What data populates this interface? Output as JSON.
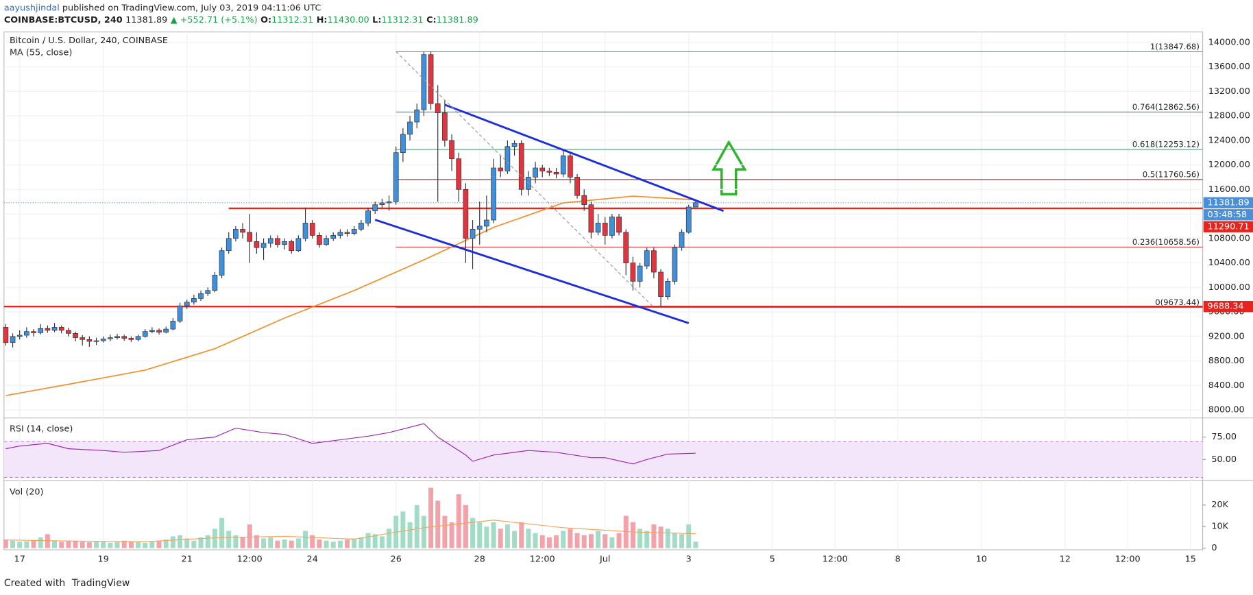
{
  "header": {
    "author": "aayushjindal",
    "published": "published on TradingView.com, July 03, 2019 04:11:06 UTC",
    "symbol": "COINBASE:BTCUSD, 240",
    "last": "11381.89",
    "change": "▲ +552.71 (+5.1%)",
    "ohlc": [
      {
        "label": "O:",
        "value": "11312.31"
      },
      {
        "label": "H:",
        "value": "11430.00"
      },
      {
        "label": "L:",
        "value": "11312.31"
      },
      {
        "label": "C:",
        "value": "11381.89"
      }
    ]
  },
  "chart_data": {
    "type": "candlestick",
    "title": "Bitcoin / U.S. Dollar, 240, COINBASE",
    "up_color": "#3f8fdc",
    "down_color": "#e0343f",
    "xlim": [
      "Jun 16 15:00",
      "Jul 15 07:00"
    ],
    "xticks": [
      {
        "value": "Jun 17 00:00",
        "label": "17"
      },
      {
        "value": "Jun 19 00:00",
        "label": "19"
      },
      {
        "value": "Jun 21 00:00",
        "label": "21"
      },
      {
        "value": "Jun 22 12:00",
        "label": "12:00"
      },
      {
        "value": "Jun 24 00:00",
        "label": "24"
      },
      {
        "value": "Jun 26 00:00",
        "label": "26"
      },
      {
        "value": "Jun 28 00:00",
        "label": "28"
      },
      {
        "value": "Jun 29 12:00",
        "label": "12:00"
      },
      {
        "value": "Jul 1 00:00",
        "label": "Jul"
      },
      {
        "value": "Jul 3 00:00",
        "label": "3"
      },
      {
        "value": "Jul 5 00:00",
        "label": "5"
      },
      {
        "value": "Jul 6 12:00",
        "label": "12:00"
      },
      {
        "value": "Jul 8 00:00",
        "label": "8"
      },
      {
        "value": "Jul 10 00:00",
        "label": "10"
      },
      {
        "value": "Jul 12 00:00",
        "label": "12"
      },
      {
        "value": "Jul 13 12:00",
        "label": "12:00"
      },
      {
        "value": "Jul 15 00:00",
        "label": "15"
      }
    ],
    "ylim": [
      7883,
      14170
    ],
    "yticks": [
      {
        "value": 8000,
        "label": "8000.00"
      },
      {
        "value": 8400,
        "label": "8400.00"
      },
      {
        "value": 8800,
        "label": "8800.00"
      },
      {
        "value": 9200,
        "label": "9200.00"
      },
      {
        "value": 9600,
        "label": "9600.00"
      },
      {
        "value": 10000,
        "label": "10000.00"
      },
      {
        "value": 10400,
        "label": "10400.00"
      },
      {
        "value": 10800,
        "label": "10800.00"
      },
      {
        "value": 11200,
        "label": "11200.00"
      },
      {
        "value": 11600,
        "label": "11600.00"
      },
      {
        "value": 12000,
        "label": "12000.00"
      },
      {
        "value": 12400,
        "label": "12400.00"
      },
      {
        "value": 12800,
        "label": "12800.00"
      },
      {
        "value": 13200,
        "label": "13200.00"
      },
      {
        "value": 13600,
        "label": "13600.00"
      },
      {
        "value": 14000,
        "label": "14000.00"
      }
    ],
    "grid": true,
    "x": [
      "Jun 16 16:00",
      "Jun 16 20:00",
      "Jun 17 00:00",
      "Jun 17 04:00",
      "Jun 17 08:00",
      "Jun 17 12:00",
      "Jun 17 16:00",
      "Jun 17 20:00",
      "Jun 18 00:00",
      "Jun 18 04:00",
      "Jun 18 08:00",
      "Jun 18 12:00",
      "Jun 18 16:00",
      "Jun 18 20:00",
      "Jun 19 00:00",
      "Jun 19 04:00",
      "Jun 19 08:00",
      "Jun 19 12:00",
      "Jun 19 16:00",
      "Jun 19 20:00",
      "Jun 20 00:00",
      "Jun 20 04:00",
      "Jun 20 08:00",
      "Jun 20 12:00",
      "Jun 20 16:00",
      "Jun 20 20:00",
      "Jun 21 00:00",
      "Jun 21 04:00",
      "Jun 21 08:00",
      "Jun 21 12:00",
      "Jun 21 16:00",
      "Jun 21 20:00",
      "Jun 22 00:00",
      "Jun 22 04:00",
      "Jun 22 08:00",
      "Jun 22 12:00",
      "Jun 22 16:00",
      "Jun 22 20:00",
      "Jun 23 00:00",
      "Jun 23 04:00",
      "Jun 23 08:00",
      "Jun 23 12:00",
      "Jun 23 16:00",
      "Jun 23 20:00",
      "Jun 24 00:00",
      "Jun 24 04:00",
      "Jun 24 08:00",
      "Jun 24 12:00",
      "Jun 24 16:00",
      "Jun 24 20:00",
      "Jun 25 00:00",
      "Jun 25 04:00",
      "Jun 25 08:00",
      "Jun 25 12:00",
      "Jun 25 16:00",
      "Jun 25 20:00",
      "Jun 26 00:00",
      "Jun 26 04:00",
      "Jun 26 08:00",
      "Jun 26 12:00",
      "Jun 26 16:00",
      "Jun 26 20:00",
      "Jun 27 00:00",
      "Jun 27 04:00",
      "Jun 27 08:00",
      "Jun 27 12:00",
      "Jun 27 16:00",
      "Jun 27 20:00",
      "Jun 28 00:00",
      "Jun 28 04:00",
      "Jun 28 08:00",
      "Jun 28 12:00",
      "Jun 28 16:00",
      "Jun 28 20:00",
      "Jun 29 00:00",
      "Jun 29 04:00",
      "Jun 29 08:00",
      "Jun 29 12:00",
      "Jun 29 16:00",
      "Jun 29 20:00",
      "Jun 30 00:00",
      "Jun 30 04:00",
      "Jun 30 08:00",
      "Jun 30 12:00",
      "Jun 30 16:00",
      "Jun 30 20:00",
      "Jul 1 00:00",
      "Jul 1 04:00",
      "Jul 1 08:00",
      "Jul 1 12:00",
      "Jul 1 16:00",
      "Jul 1 20:00",
      "Jul 2 00:00",
      "Jul 2 04:00",
      "Jul 2 08:00",
      "Jul 2 12:00",
      "Jul 2 16:00",
      "Jul 2 20:00",
      "Jul 3 00:00",
      "Jul 3 04:00"
    ],
    "ohlc": [
      [
        9350,
        9400,
        9050,
        9100
      ],
      [
        9100,
        9250,
        9020,
        9200
      ],
      [
        9200,
        9300,
        9150,
        9220
      ],
      [
        9220,
        9350,
        9180,
        9280
      ],
      [
        9280,
        9320,
        9200,
        9260
      ],
      [
        9260,
        9400,
        9230,
        9330
      ],
      [
        9330,
        9380,
        9260,
        9300
      ],
      [
        9300,
        9420,
        9270,
        9350
      ],
      [
        9350,
        9380,
        9250,
        9300
      ],
      [
        9300,
        9340,
        9200,
        9250
      ],
      [
        9250,
        9280,
        9120,
        9180
      ],
      [
        9180,
        9220,
        9050,
        9150
      ],
      [
        9150,
        9200,
        9030,
        9120
      ],
      [
        9120,
        9180,
        9060,
        9130
      ],
      [
        9130,
        9200,
        9100,
        9160
      ],
      [
        9160,
        9230,
        9120,
        9180
      ],
      [
        9180,
        9240,
        9150,
        9200
      ],
      [
        9200,
        9230,
        9130,
        9170
      ],
      [
        9170,
        9200,
        9110,
        9150
      ],
      [
        9150,
        9230,
        9120,
        9200
      ],
      [
        9200,
        9320,
        9180,
        9280
      ],
      [
        9280,
        9350,
        9250,
        9300
      ],
      [
        9300,
        9330,
        9230,
        9270
      ],
      [
        9270,
        9360,
        9250,
        9320
      ],
      [
        9320,
        9500,
        9300,
        9450
      ],
      [
        9450,
        9750,
        9420,
        9700
      ],
      [
        9700,
        9800,
        9650,
        9760
      ],
      [
        9760,
        9880,
        9720,
        9820
      ],
      [
        9820,
        9950,
        9780,
        9900
      ],
      [
        9900,
        10000,
        9860,
        9950
      ],
      [
        9950,
        10250,
        9920,
        10200
      ],
      [
        10200,
        10650,
        10150,
        10600
      ],
      [
        10600,
        10900,
        10550,
        10800
      ],
      [
        10800,
        11000,
        10750,
        10950
      ],
      [
        10950,
        11050,
        10800,
        10900
      ],
      [
        10900,
        11200,
        10400,
        10750
      ],
      [
        10750,
        10900,
        10550,
        10650
      ],
      [
        10650,
        10800,
        10450,
        10720
      ],
      [
        10720,
        10850,
        10650,
        10800
      ],
      [
        10800,
        10850,
        10650,
        10700
      ],
      [
        10700,
        10800,
        10620,
        10750
      ],
      [
        10750,
        10780,
        10550,
        10600
      ],
      [
        10600,
        10850,
        10580,
        10800
      ],
      [
        10800,
        11300,
        10750,
        11050
      ],
      [
        11050,
        11100,
        10800,
        10850
      ],
      [
        10850,
        10900,
        10650,
        10700
      ],
      [
        10700,
        10850,
        10680,
        10800
      ],
      [
        10800,
        10900,
        10760,
        10850
      ],
      [
        10850,
        10950,
        10800,
        10900
      ],
      [
        10900,
        10950,
        10830,
        10880
      ],
      [
        10880,
        11000,
        10850,
        10950
      ],
      [
        10950,
        11100,
        10920,
        11050
      ],
      [
        11050,
        11300,
        11000,
        11250
      ],
      [
        11250,
        11400,
        11200,
        11350
      ],
      [
        11350,
        11450,
        11300,
        11380
      ],
      [
        11380,
        11500,
        11250,
        11400
      ],
      [
        11400,
        12300,
        11350,
        12200
      ],
      [
        12200,
        12600,
        12050,
        12500
      ],
      [
        12500,
        12800,
        12400,
        12700
      ],
      [
        12700,
        13000,
        12600,
        12900
      ],
      [
        12900,
        13848,
        12800,
        13800
      ],
      [
        13800,
        13850,
        12900,
        13000
      ],
      [
        13000,
        13300,
        11400,
        12850
      ],
      [
        12850,
        13050,
        12300,
        12400
      ],
      [
        12400,
        12500,
        11900,
        12100
      ],
      [
        12100,
        12200,
        11400,
        11600
      ],
      [
        11600,
        11700,
        10400,
        10800
      ],
      [
        10800,
        11100,
        10300,
        10950
      ],
      [
        10950,
        11400,
        10700,
        11000
      ],
      [
        11000,
        11500,
        10900,
        11100
      ],
      [
        11100,
        12100,
        11050,
        11950
      ],
      [
        11950,
        12150,
        11800,
        11900
      ],
      [
        11900,
        12400,
        11850,
        12300
      ],
      [
        12300,
        12400,
        12150,
        12350
      ],
      [
        12350,
        12400,
        11500,
        11600
      ],
      [
        11600,
        11900,
        11500,
        11800
      ],
      [
        11800,
        12050,
        11700,
        11950
      ],
      [
        11950,
        12000,
        11800,
        11900
      ],
      [
        11900,
        11950,
        11820,
        11880
      ],
      [
        11880,
        11950,
        11780,
        11850
      ],
      [
        11850,
        12250,
        11800,
        12150
      ],
      [
        12150,
        12200,
        11700,
        11800
      ],
      [
        11800,
        11850,
        11450,
        11500
      ],
      [
        11500,
        11600,
        11250,
        11350
      ],
      [
        11350,
        11400,
        10800,
        10900
      ],
      [
        10900,
        11200,
        10850,
        11050
      ],
      [
        11050,
        11150,
        10700,
        10850
      ],
      [
        10850,
        11200,
        10800,
        11150
      ],
      [
        11150,
        11200,
        10850,
        10900
      ],
      [
        10900,
        10950,
        10200,
        10400
      ],
      [
        10400,
        10500,
        9950,
        10100
      ],
      [
        10100,
        10400,
        10000,
        10350
      ],
      [
        10350,
        10650,
        10300,
        10600
      ],
      [
        10600,
        10650,
        10150,
        10250
      ],
      [
        10250,
        10300,
        9680,
        9850
      ],
      [
        9850,
        10150,
        9800,
        10100
      ],
      [
        10100,
        10700,
        10050,
        10650
      ],
      [
        10650,
        10950,
        10600,
        10900
      ],
      [
        10900,
        11350,
        10880,
        11312.31
      ],
      [
        11312.31,
        11430,
        11312.31,
        11381.89
      ]
    ],
    "ma": {
      "name": "MA (55, close)",
      "color": "#f0902e",
      "x": [
        "Jun 16 16:00",
        "Jun 18 08:00",
        "Jun 20 00:00",
        "Jun 21 16:00",
        "Jun 23 08:00",
        "Jun 25 00:00",
        "Jun 26 16:00",
        "Jun 28 08:00",
        "Jun 30 00:00",
        "Jul 1 16:00",
        "Jul 3 04:00"
      ],
      "values": [
        8235,
        8440,
        8650,
        9000,
        9500,
        9950,
        10450,
        10980,
        11380,
        11490,
        11430
      ]
    },
    "fib": {
      "start": "Jun 26 00:00",
      "levels": [
        {
          "value": 13847.68,
          "label": "1(13847.68)",
          "color": "#5b9fb5"
        },
        {
          "value": 12862.56,
          "label": "0.764(12862.56)",
          "color": "#1f8fc0"
        },
        {
          "value": 12253.12,
          "label": "0.618(12253.12)",
          "color": "#3aa86b"
        },
        {
          "value": 11760.56,
          "label": "0.5(11760.56)",
          "color": "#8a2b2b"
        },
        {
          "value": 10658.56,
          "label": "0.236(10658.56)",
          "color": "#e04040"
        },
        {
          "value": 9673.44,
          "label": "0(9673.44)",
          "color": "#888888"
        }
      ]
    },
    "levels": [
      {
        "value": 11290.71,
        "label": "11290.71",
        "start": "Jun 22 00:00",
        "color": "#e5251e"
      },
      {
        "value": 9688.34,
        "label": "9688.34",
        "start": "Jun 16 15:00",
        "color": "#e5251e"
      }
    ],
    "trendlines": [
      {
        "x": [
          "Jun 27 04:00",
          "Jul 3 20:00"
        ],
        "values": [
          12982,
          11248
        ],
        "color": "#1c2fd8"
      },
      {
        "x": [
          "Jun 25 12:00",
          "Jul 3 00:00"
        ],
        "values": [
          11104,
          9417
        ],
        "color": "#1c2fd8"
      },
      {
        "x": [
          "Jun 26 00:00",
          "Jul 2 04:00"
        ],
        "values": [
          13847.68,
          9673.44
        ],
        "color": "#999999",
        "dashed": true
      }
    ],
    "last_price": {
      "value": 11381.89,
      "label": "11381.89",
      "countdown": "03:48:58",
      "color": "#4a90d9"
    },
    "rsi": {
      "title": "RSI (14, close)",
      "color": "#9c27b0",
      "band": [
        30,
        70
      ],
      "ylim": [
        27.7,
        95.5
      ],
      "yticks": [
        {
          "value": 75,
          "label": "75.00"
        },
        {
          "value": 50,
          "label": "50.00"
        }
      ],
      "x": [
        "Jun 16 16:00",
        "Jun 17 00:00",
        "Jun 17 16:00",
        "Jun 18 04:00",
        "Jun 19 00:00",
        "Jun 19 12:00",
        "Jun 20 08:00",
        "Jun 21 00:00",
        "Jun 21 16:00",
        "Jun 22 04:00",
        "Jun 22 20:00",
        "Jun 23 08:00",
        "Jun 24 00:00",
        "Jun 24 16:00",
        "Jun 25 08:00",
        "Jun 25 20:00",
        "Jun 26 16:00",
        "Jun 27 00:00",
        "Jun 27 16:00",
        "Jun 27 20:00",
        "Jun 28 08:00",
        "Jun 29 04:00",
        "Jun 29 20:00",
        "Jun 30 16:00",
        "Jul 1 00:00",
        "Jul 1 16:00",
        "Jul 2 00:00",
        "Jul 2 12:00",
        "Jul 3 04:00"
      ],
      "values": [
        62,
        65,
        68,
        62,
        60,
        58,
        60,
        72,
        75,
        85,
        80,
        78,
        68,
        72,
        76,
        80,
        90,
        75,
        55,
        48,
        55,
        60,
        58,
        52,
        52,
        45,
        50,
        56,
        57
      ]
    },
    "volume": {
      "title": "Vol (20)",
      "up_color": "#a3dcc6",
      "down_color": "#f2a3aa",
      "ylim": [
        -740,
        31100
      ],
      "yticks": [
        0,
        {
          "value": 10000,
          "label": "10K"
        },
        {
          "value": 20000,
          "label": "20K"
        }
      ],
      "values": [
        4000,
        3500,
        3000,
        3200,
        3800,
        5000,
        6500,
        3500,
        3000,
        3200,
        3500,
        3000,
        2800,
        3200,
        3000,
        2500,
        2800,
        3500,
        3000,
        2800,
        2500,
        3000,
        3500,
        4000,
        5500,
        6000,
        4500,
        3500,
        5000,
        6000,
        9000,
        14000,
        8000,
        6000,
        5000,
        11000,
        6000,
        4500,
        5000,
        3500,
        4000,
        3500,
        4500,
        8000,
        6000,
        4000,
        3500,
        3000,
        3500,
        4000,
        4500,
        5000,
        7000,
        6500,
        5500,
        9000,
        15000,
        17000,
        12000,
        20000,
        15000,
        28000,
        22000,
        15000,
        12000,
        25000,
        20000,
        14000,
        12000,
        10000,
        12000,
        9000,
        11000,
        8000,
        12000,
        9000,
        7000,
        6000,
        5000,
        6000,
        8000,
        9000,
        7000,
        6000,
        6500,
        8000,
        6500,
        5000,
        7000,
        15000,
        12000,
        9000,
        8000,
        11000,
        10000,
        9000,
        7000,
        6500,
        11000,
        3000
      ],
      "ma": {
        "color": "#f5a35b",
        "x": [
          "Jun 16 16:00",
          "Jun 18 08:00",
          "Jun 20 00:00",
          "Jun 21 16:00",
          "Jun 23 08:00",
          "Jun 25 00:00",
          "Jun 26 16:00",
          "Jun 28 08:00",
          "Jun 30 00:00",
          "Jul 1 16:00",
          "Jul 3 04:00"
        ],
        "values": [
          3800,
          3300,
          3000,
          4800,
          5500,
          4200,
          9500,
          13000,
          9500,
          7500,
          6700
        ]
      }
    }
  },
  "footer": {
    "created": "Created with",
    "brand": "TradingView"
  }
}
